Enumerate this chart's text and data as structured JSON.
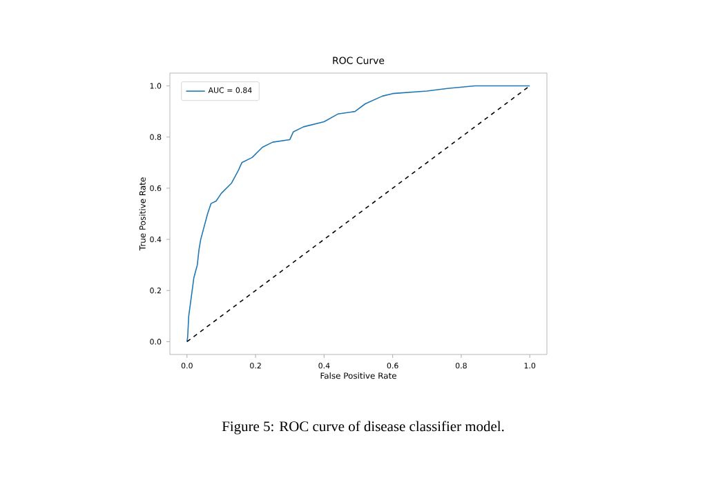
{
  "chart_data": {
    "type": "line",
    "title": "ROC Curve",
    "xlabel": "False Positive Rate",
    "ylabel": "True Positive Rate",
    "xlim": [
      -0.05,
      1.05
    ],
    "ylim": [
      -0.05,
      1.05
    ],
    "xticks": [
      {
        "value": 0,
        "label": "0.0"
      },
      {
        "value": 0.2,
        "label": "0.2"
      },
      {
        "value": 0.4,
        "label": "0.4"
      },
      {
        "value": 0.6,
        "label": "0.6"
      },
      {
        "value": 0.8,
        "label": "0.8"
      },
      {
        "value": 1,
        "label": "1.0"
      }
    ],
    "yticks": [
      {
        "value": 0,
        "label": "0.0"
      },
      {
        "value": 0.2,
        "label": "0.2"
      },
      {
        "value": 0.4,
        "label": "0.4"
      },
      {
        "value": 0.6,
        "label": "0.6"
      },
      {
        "value": 0.8,
        "label": "0.8"
      },
      {
        "value": 1,
        "label": "1.0"
      }
    ],
    "legend": "top left",
    "annotations": [
      "Figure 5: ROC curve of disease classifier model."
    ],
    "series": [
      {
        "name": "AUC = 0.84",
        "color": "#1f77b4",
        "line_style": "solid",
        "x": [
          0,
          0.002,
          0.005,
          0.01,
          0.015,
          0.02,
          0.03,
          0.035,
          0.04,
          0.05,
          0.06,
          0.07,
          0.085,
          0.1,
          0.13,
          0.15,
          0.16,
          0.19,
          0.22,
          0.25,
          0.3,
          0.31,
          0.34,
          0.4,
          0.44,
          0.49,
          0.52,
          0.57,
          0.6,
          0.7,
          0.76,
          0.84,
          1
        ],
        "values": [
          0,
          0.02,
          0.1,
          0.15,
          0.2,
          0.25,
          0.3,
          0.36,
          0.4,
          0.45,
          0.5,
          0.54,
          0.55,
          0.58,
          0.62,
          0.67,
          0.7,
          0.72,
          0.76,
          0.78,
          0.79,
          0.82,
          0.84,
          0.86,
          0.89,
          0.9,
          0.93,
          0.96,
          0.97,
          0.98,
          0.99,
          1.0,
          1.0
        ]
      },
      {
        "type": "line",
        "color": "#000000",
        "line_style": "dashed",
        "x": [
          0,
          1
        ],
        "values": [
          0,
          1
        ]
      }
    ]
  }
}
